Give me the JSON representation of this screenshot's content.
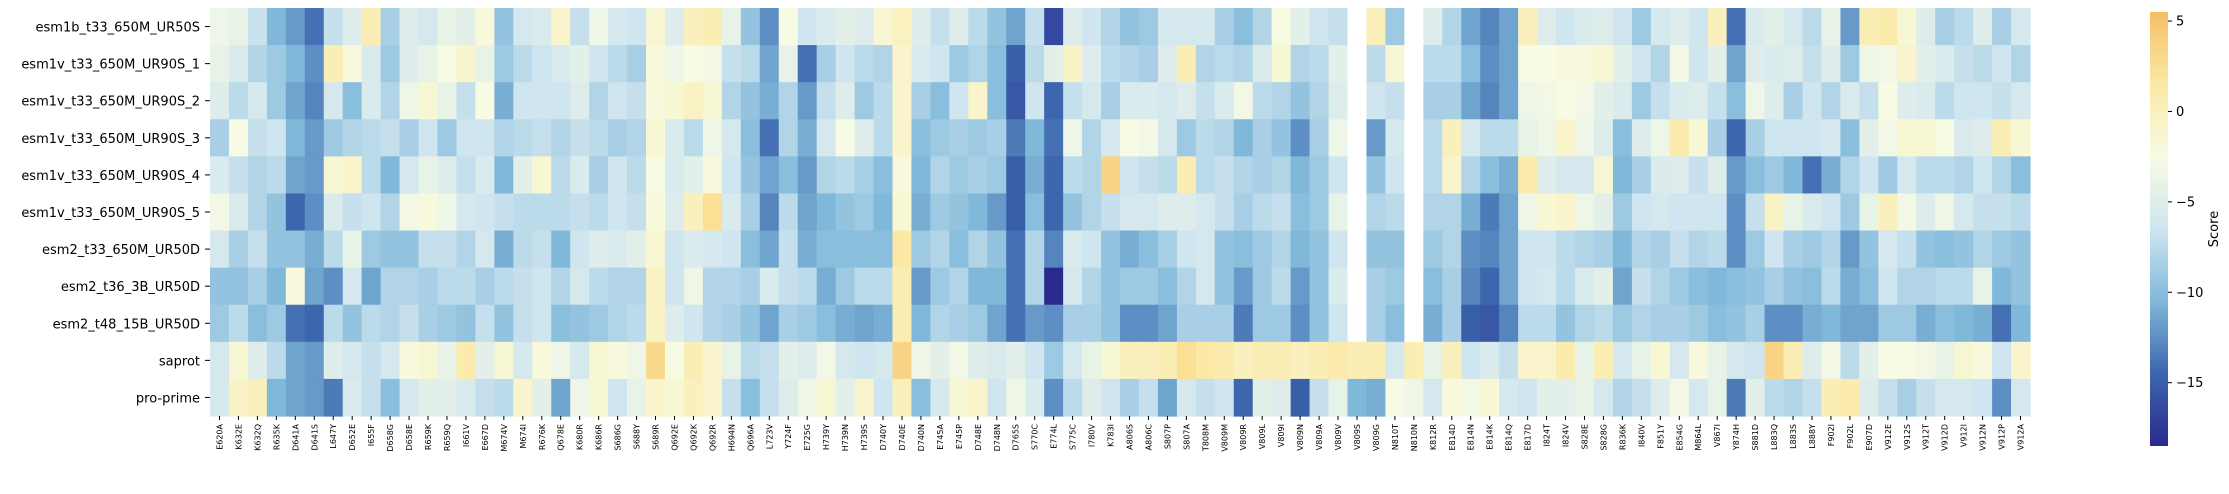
{
  "chart_data": {
    "type": "heatmap",
    "title": "",
    "xlabel": "",
    "ylabel": "",
    "colorbar": {
      "label": "Score",
      "min": -18.5,
      "max": 5.5,
      "ticks": [
        5,
        0,
        -5,
        -10,
        -15
      ],
      "tick_labels": [
        "5",
        "0",
        "−5",
        "−10",
        "−15"
      ],
      "colors": [
        "#2a2a8e",
        "#3c66ad",
        "#80b8da",
        "#cfe5ef",
        "#f7fbe4",
        "#fbe9a5",
        "#f5bf66"
      ]
    },
    "rows": [
      "esm1b_t33_650M_UR50S",
      "esm1v_t33_650M_UR90S_1",
      "esm1v_t33_650M_UR90S_2",
      "esm1v_t33_650M_UR90S_3",
      "esm1v_t33_650M_UR90S_4",
      "esm1v_t33_650M_UR90S_5",
      "esm2_t33_650M_UR50D",
      "esm2_t36_3B_UR50D",
      "esm2_t48_15B_UR50D",
      "saprot",
      "pro-prime"
    ],
    "x_tick_labels": [
      "E620A",
      "K632E",
      "K632Q",
      "R635K",
      "D641A",
      "D641S",
      "L647Y",
      "D652E",
      "I655F",
      "D658G",
      "D658E",
      "R659K",
      "R659Q",
      "I661V",
      "E667D",
      "M674V",
      "M674I",
      "R676K",
      "Q678E",
      "K680R",
      "K686R",
      "S686G",
      "S688Y",
      "S689R",
      "Q692E",
      "Q692K",
      "Q692R",
      "H694N",
      "Q696A",
      "L723V",
      "Y724F",
      "E725G",
      "H739Y",
      "H739N",
      "H739S",
      "D740Y",
      "D740E",
      "D740N",
      "E745A",
      "E745P",
      "D748E",
      "D748N",
      "D765S",
      "S770C",
      "E774L",
      "S775C",
      "I780V",
      "K783I",
      "A806S",
      "A806C",
      "S807P",
      "S807A",
      "T808M",
      "V809M",
      "V809R",
      "V809L",
      "V809I",
      "V809N",
      "V809A",
      "V809V",
      "V809S",
      "V809G",
      "N810T",
      "N810N",
      "K812R",
      "E814D",
      "E814N",
      "E814K",
      "E814Q",
      "E817D",
      "I824T",
      "I824V",
      "S828E",
      "S828G",
      "R836K",
      "I840V",
      "F851Y",
      "E854G",
      "M864L",
      "V867I",
      "Y874H",
      "S881D",
      "L883Q",
      "L883S",
      "L888Y",
      "F902I",
      "F902L",
      "E907D",
      "V912E",
      "V912S",
      "V912T",
      "V912D",
      "V912I",
      "V912N",
      "V912P",
      "V912A"
    ],
    "values": [
      [
        -3.5,
        -4.0,
        -6.8,
        -10.5,
        -12.0,
        -14.0,
        -7.0,
        -5.0,
        0.5,
        -8.5,
        -5.0,
        -6.0,
        -4.0,
        -4.5,
        -2.0,
        -9.5,
        -6.0,
        -5.5,
        -1.0,
        -7.0,
        -3.5,
        -6.0,
        -6.5,
        -1.5,
        -5.0,
        0.0,
        0.5,
        -4.0,
        -9.5,
        -12.5,
        -2.5,
        -6.5,
        -5.5,
        -4.5,
        -5.0,
        -1.5,
        -0.2,
        -5.0,
        -7.0,
        -5.0,
        -7.5,
        -9.5,
        -11.5,
        -7.0,
        -16.5,
        -5.0,
        -6.5,
        -8.0,
        -9.5,
        -9.0,
        -6.0,
        -6.0,
        -6.0,
        -8.5,
        -10.0,
        -8.0,
        -2.5,
        -4.5,
        -6.5,
        -7.0,
        -8.0,
        0.2,
        -9.0,
        -6.0,
        -5.0,
        -8.0,
        -11.5,
        -13.0,
        -11.5,
        0.0,
        -5.0,
        -6.5,
        -5.5,
        -5.0,
        -6.5,
        -9.0,
        -6.0,
        -5.0,
        -6.5,
        0.0,
        -14.0,
        -5.5,
        -4.5,
        -6.0,
        -7.5,
        -4.0,
        -12.0,
        0.5,
        1.0,
        -1.5,
        -5.0,
        -8.5,
        -7.5,
        -5.0,
        -8.5,
        -6.0
      ],
      [
        -4.0,
        -5.5,
        -8.0,
        -9.0,
        -10.5,
        -12.5,
        0.5,
        -2.0,
        -5.5,
        -9.0,
        -5.0,
        -4.0,
        -2.5,
        -1.0,
        -4.0,
        -9.0,
        -7.5,
        -6.5,
        -5.5,
        -4.5,
        -6.5,
        -7.5,
        -8.5,
        -2.0,
        -3.5,
        -2.5,
        -3.0,
        -7.0,
        -7.5,
        -11.5,
        -4.0,
        -14.0,
        -8.5,
        -6.5,
        -7.5,
        -8.0,
        -1.0,
        -5.5,
        -6.5,
        -9.0,
        -8.0,
        -10.0,
        -15.0,
        -7.5,
        -4.5,
        -0.5,
        -5.0,
        -7.5,
        -8.0,
        -8.5,
        -5.0,
        0.5,
        -8.0,
        -7.5,
        -8.0,
        -5.5,
        -1.5,
        -8.0,
        -7.5,
        -4.5,
        -8.5,
        -7.5,
        -1.5,
        -8.0,
        -7.5,
        -7.5,
        -10.0,
        -12.5,
        -11.5,
        -2.5,
        -2.5,
        -2.0,
        -2.0,
        -1.5,
        -4.5,
        -6.5,
        -8.0,
        -3.0,
        -6.5,
        -4.5,
        -11.5,
        -5.0,
        -5.5,
        -5.0,
        -7.0,
        -5.0,
        -9.0,
        -3.5,
        -3.0,
        -1.0,
        -4.5,
        -5.5,
        -7.0,
        -7.5,
        -6.5,
        -8.0
      ],
      [
        -5.0,
        -7.5,
        -6.0,
        -9.0,
        -11.5,
        -13.0,
        -6.0,
        -10.0,
        -5.5,
        -8.0,
        -3.5,
        -1.5,
        -4.0,
        -7.0,
        -2.5,
        -11.0,
        -6.5,
        -6.5,
        -6.5,
        -5.0,
        -8.0,
        -6.5,
        -7.0,
        -2.0,
        -1.5,
        -0.5,
        -1.5,
        -8.0,
        -9.5,
        -11.0,
        -8.0,
        -12.0,
        -7.0,
        -5.0,
        -9.0,
        -7.5,
        -1.0,
        -8.5,
        -10.0,
        -6.5,
        -1.0,
        -10.0,
        -15.5,
        -6.5,
        -14.5,
        -7.0,
        -6.0,
        -8.5,
        -5.5,
        -5.5,
        -6.0,
        -5.0,
        -7.0,
        -5.5,
        -3.0,
        -7.5,
        -8.0,
        -9.5,
        -8.0,
        -5.0,
        -7.5,
        -6.5,
        -7.0,
        -9.0,
        -8.5,
        -8.5,
        -11.5,
        -13.0,
        -11.5,
        -3.5,
        -3.0,
        -2.5,
        -3.0,
        -4.5,
        -5.5,
        -9.0,
        -7.0,
        -5.5,
        -5.0,
        -7.0,
        -10.0,
        -3.5,
        -5.0,
        -8.5,
        -6.5,
        -8.0,
        -5.5,
        -7.0,
        -2.5,
        -5.0,
        -5.5,
        -7.5,
        -6.5,
        -6.5,
        -7.0,
        -6.0
      ],
      [
        -8.5,
        -2.5,
        -7.0,
        -6.5,
        -10.5,
        -12.0,
        -9.0,
        -8.0,
        -7.5,
        -7.0,
        -8.5,
        -6.5,
        -9.0,
        -6.5,
        -6.5,
        -8.0,
        -7.5,
        -7.0,
        -8.0,
        -7.0,
        -7.5,
        -8.5,
        -8.0,
        -1.5,
        -5.5,
        -7.5,
        -3.5,
        -6.0,
        -10.0,
        -14.0,
        -8.0,
        -11.0,
        -6.0,
        -2.5,
        -5.0,
        -7.5,
        -1.0,
        -10.0,
        -9.0,
        -8.5,
        -9.0,
        -8.5,
        -13.5,
        -10.5,
        -14.0,
        -3.5,
        -8.0,
        -6.0,
        -2.5,
        -3.0,
        -6.0,
        -9.0,
        -7.5,
        -8.0,
        -10.5,
        -8.5,
        -9.5,
        -12.5,
        -8.5,
        -3.5,
        -11.5,
        -12.0,
        -6.0,
        -8.5,
        -7.5,
        0.0,
        -6.0,
        -7.5,
        -7.5,
        -4.0,
        -3.5,
        -1.0,
        -3.5,
        -5.0,
        -10.0,
        -5.0,
        -3.5,
        1.0,
        -1.5,
        -8.5,
        -14.5,
        -8.5,
        -6.5,
        -6.5,
        -6.5,
        -6.0,
        -10.0,
        -4.5,
        -3.0,
        -1.5,
        -1.5,
        -2.5,
        -5.5,
        -5.0,
        0.5,
        -1.5
      ],
      [
        -5.5,
        -7.0,
        -8.0,
        -7.5,
        -11.5,
        -12.0,
        -1.5,
        -1.0,
        -7.5,
        -10.5,
        -6.0,
        -4.0,
        -5.0,
        -7.0,
        -5.5,
        -10.5,
        -4.5,
        -1.5,
        -7.5,
        -5.5,
        -8.5,
        -6.5,
        -7.5,
        -2.5,
        -5.5,
        -4.5,
        -2.0,
        -6.5,
        -9.5,
        -11.5,
        -10.0,
        -12.0,
        -8.0,
        -7.5,
        -8.5,
        -10.0,
        -2.0,
        -10.5,
        -8.0,
        -9.0,
        -8.5,
        -9.0,
        -15.0,
        -11.0,
        -14.5,
        -7.5,
        -8.0,
        3.5,
        -6.5,
        -7.0,
        -7.5,
        0.5,
        -7.5,
        -7.0,
        -8.0,
        -8.5,
        -8.0,
        -10.5,
        -9.0,
        -6.5,
        -10.0,
        -9.5,
        -6.5,
        -8.5,
        -7.5,
        -1.0,
        -8.0,
        -10.0,
        -11.0,
        1.0,
        -5.0,
        -6.0,
        -6.0,
        -1.5,
        -10.5,
        -8.5,
        -5.5,
        -5.0,
        -7.0,
        -5.0,
        -12.0,
        -10.0,
        -9.0,
        -10.5,
        -14.0,
        -11.0,
        -8.0,
        -6.5,
        -9.0,
        -6.0,
        -7.5,
        -7.5,
        -8.0,
        -6.5,
        -8.0,
        -10.0
      ],
      [
        -3.0,
        -5.5,
        -8.0,
        -9.5,
        -14.5,
        -12.5,
        -5.5,
        -7.0,
        -6.5,
        -8.0,
        -3.0,
        -2.0,
        -3.5,
        -6.0,
        -6.5,
        -7.0,
        -7.5,
        -7.5,
        -7.5,
        -7.0,
        -7.5,
        -6.5,
        -7.0,
        -2.0,
        -5.0,
        0.0,
        2.5,
        -5.5,
        -8.5,
        -13.0,
        -7.5,
        -11.5,
        -10.5,
        -9.5,
        -9.0,
        -10.5,
        -1.5,
        -11.0,
        -9.0,
        -9.5,
        -10.5,
        -12.0,
        -15.0,
        -10.0,
        -14.5,
        -9.5,
        -8.0,
        -7.0,
        -6.0,
        -6.0,
        -5.0,
        -5.0,
        -6.0,
        -7.0,
        -8.5,
        -7.5,
        -7.0,
        -10.0,
        -9.0,
        -4.0,
        -9.0,
        -8.0,
        -7.5,
        -7.0,
        -8.0,
        -8.0,
        -11.0,
        -13.5,
        -11.5,
        -3.5,
        -1.5,
        -1.0,
        -3.5,
        -4.5,
        -9.0,
        -6.5,
        -6.0,
        -6.5,
        -6.5,
        -6.5,
        -12.5,
        -7.0,
        -0.5,
        -4.0,
        -5.5,
        -6.5,
        -9.0,
        -4.0,
        0.0,
        -3.0,
        -5.0,
        -3.5,
        -6.0,
        -7.0,
        -7.0,
        -7.5
      ],
      [
        -6.0,
        -8.5,
        -7.0,
        -9.5,
        -9.5,
        -11.0,
        -7.5,
        -4.0,
        -9.0,
        -9.5,
        -9.5,
        -7.0,
        -7.0,
        -8.0,
        -6.0,
        -11.0,
        -7.5,
        -7.0,
        -10.5,
        -6.5,
        -5.0,
        -5.5,
        -4.5,
        -1.5,
        -6.5,
        -5.5,
        -6.0,
        -6.5,
        -10.0,
        -11.5,
        -7.0,
        -11.0,
        -10.0,
        -10.0,
        -10.0,
        -10.0,
        1.5,
        -9.0,
        -8.0,
        -10.0,
        -8.0,
        -9.5,
        -14.0,
        -8.0,
        -13.0,
        -5.5,
        -6.5,
        -9.5,
        -11.0,
        -10.0,
        -8.5,
        -6.5,
        -6.0,
        -9.5,
        -10.0,
        -9.0,
        -8.0,
        -10.5,
        -9.5,
        -6.5,
        -10.0,
        -9.5,
        -9.5,
        -9.5,
        -9.0,
        -8.0,
        -12.5,
        -13.0,
        -11.5,
        -6.5,
        -6.5,
        -7.5,
        -8.0,
        -8.5,
        -10.5,
        -8.0,
        -8.5,
        -7.0,
        -8.0,
        -7.5,
        -12.5,
        -9.0,
        -6.5,
        -8.5,
        -9.0,
        -8.0,
        -12.0,
        -9.5,
        -6.0,
        -7.0,
        -9.5,
        -10.0,
        -9.5,
        -8.0,
        -9.0,
        -9.5
      ],
      [
        -9.5,
        -9.5,
        -8.5,
        -10.5,
        -2.0,
        -11.5,
        -12.5,
        -6.0,
        -11.5,
        -8.0,
        -8.0,
        -8.5,
        -7.5,
        -7.5,
        -8.5,
        -7.5,
        -7.0,
        -6.5,
        -8.0,
        -6.0,
        -7.5,
        -8.0,
        -8.0,
        -0.5,
        -6.5,
        -3.5,
        -8.0,
        -8.0,
        -8.5,
        -5.5,
        -7.0,
        -7.5,
        -11.0,
        -9.0,
        -7.5,
        -7.5,
        0.5,
        -12.0,
        -9.0,
        -8.0,
        -10.5,
        -10.5,
        -14.0,
        -8.0,
        -18.5,
        -6.0,
        -8.0,
        -9.5,
        -9.0,
        -9.0,
        -10.0,
        -8.0,
        -6.0,
        -9.5,
        -12.0,
        -9.0,
        -7.5,
        -12.0,
        -9.5,
        -5.5,
        -12.5,
        -8.5,
        -9.0,
        -4.5,
        -10.0,
        -8.5,
        -13.0,
        -14.5,
        -11.5,
        -6.5,
        -6.0,
        -7.5,
        -5.5,
        -4.5,
        -11.5,
        -7.0,
        -8.0,
        -9.0,
        -10.0,
        -10.5,
        -10.0,
        -9.5,
        -8.5,
        -9.5,
        -10.0,
        -7.5,
        -11.0,
        -10.0,
        -6.5,
        -8.0,
        -8.0,
        -7.5,
        -7.5,
        -4.0,
        -10.5,
        -9.5
      ],
      [
        -9.0,
        -7.5,
        -10.0,
        -9.0,
        -14.0,
        -14.5,
        -7.5,
        -9.5,
        -7.5,
        -8.0,
        -7.0,
        -8.5,
        -9.0,
        -9.5,
        -7.0,
        -9.5,
        -7.0,
        -6.5,
        -10.0,
        -9.5,
        -9.0,
        -8.0,
        -7.5,
        -0.5,
        -5.0,
        -6.5,
        -8.0,
        -8.5,
        -9.5,
        -11.5,
        -8.5,
        -9.0,
        -10.0,
        -11.0,
        -11.5,
        -11.0,
        0.5,
        -10.5,
        -8.0,
        -8.5,
        -9.0,
        -11.5,
        -14.0,
        -12.0,
        -12.5,
        -8.5,
        -8.5,
        -9.5,
        -12.5,
        -12.5,
        -11.5,
        -8.5,
        -8.5,
        -8.5,
        -13.5,
        -9.0,
        -9.0,
        -12.5,
        -9.5,
        -6.5,
        -10.0,
        -8.5,
        -10.0,
        -6.5,
        -11.0,
        -8.5,
        -15.0,
        -15.5,
        -13.0,
        -7.5,
        -7.5,
        -9.5,
        -8.0,
        -7.5,
        -9.0,
        -8.0,
        -8.5,
        -8.5,
        -9.0,
        -10.0,
        -9.5,
        -8.5,
        -12.5,
        -12.5,
        -11.0,
        -10.5,
        -11.5,
        -11.5,
        -9.0,
        -9.0,
        -11.0,
        -10.0,
        -10.5,
        -11.0,
        -14.0,
        -10.5
      ],
      [
        -6.0,
        -1.5,
        -5.0,
        -7.5,
        -11.5,
        -12.0,
        -5.0,
        -6.0,
        -7.0,
        -6.0,
        -2.0,
        -1.5,
        -4.0,
        1.0,
        -4.5,
        -1.5,
        -6.0,
        -2.0,
        -3.5,
        -6.0,
        -1.5,
        -2.0,
        -3.5,
        3.0,
        -2.5,
        0.5,
        -1.0,
        -4.0,
        -7.5,
        -7.0,
        -4.5,
        -5.0,
        -3.0,
        -6.0,
        -6.5,
        -6.0,
        3.5,
        -3.5,
        -4.5,
        -3.0,
        -5.0,
        -5.5,
        -4.5,
        -6.5,
        -9.0,
        -6.0,
        -4.0,
        -1.5,
        0.0,
        0.0,
        0.5,
        2.5,
        1.5,
        1.0,
        0.0,
        0.5,
        0.5,
        0.0,
        0.5,
        1.0,
        0.5,
        0.5,
        -6.0,
        0.5,
        -4.0,
        0.0,
        -6.5,
        -5.5,
        -7.0,
        -1.0,
        -1.0,
        1.0,
        -4.0,
        0.5,
        -6.0,
        -4.0,
        -1.5,
        -6.0,
        -2.0,
        -4.0,
        -6.0,
        -6.5,
        3.5,
        0.5,
        -5.0,
        -3.0,
        -7.5,
        -4.5,
        -2.5,
        -2.5,
        -3.0,
        -4.0,
        -1.5,
        -2.0,
        -6.5,
        -1.0
      ],
      [
        -6.0,
        -0.5,
        0.0,
        -10.5,
        -11.5,
        -12.0,
        -13.5,
        -5.5,
        -7.0,
        -10.0,
        -6.0,
        -4.5,
        -4.5,
        -5.5,
        -7.0,
        -7.5,
        -1.0,
        -4.5,
        -11.5,
        -3.5,
        -1.5,
        -6.5,
        -4.0,
        -1.0,
        -1.5,
        0.0,
        -1.0,
        -7.0,
        -10.0,
        -7.0,
        -5.0,
        -3.5,
        -1.5,
        -4.5,
        -1.0,
        -6.5,
        0.0,
        -10.0,
        -6.0,
        -1.5,
        -1.0,
        -6.5,
        -3.5,
        -5.5,
        -12.5,
        -7.5,
        -5.0,
        -6.5,
        -8.5,
        -7.0,
        -11.5,
        -6.0,
        -7.0,
        -6.5,
        -14.5,
        -4.5,
        -5.0,
        -15.0,
        -7.0,
        -4.0,
        -10.5,
        -11.0,
        -2.5,
        -3.5,
        -6.0,
        -2.0,
        -3.0,
        -1.5,
        -6.0,
        -6.5,
        -4.5,
        -4.5,
        -4.0,
        -6.0,
        -8.0,
        -7.0,
        -5.0,
        -3.0,
        -6.0,
        -4.0,
        -13.5,
        -4.5,
        -7.5,
        -8.0,
        -7.0,
        0.5,
        1.0,
        -5.0,
        -7.0,
        -8.5,
        -7.0,
        -6.0,
        -6.0,
        -6.5,
        -12.5,
        -6.0
      ]
    ],
    "blank_column_indices": [
      60,
      63
    ]
  }
}
